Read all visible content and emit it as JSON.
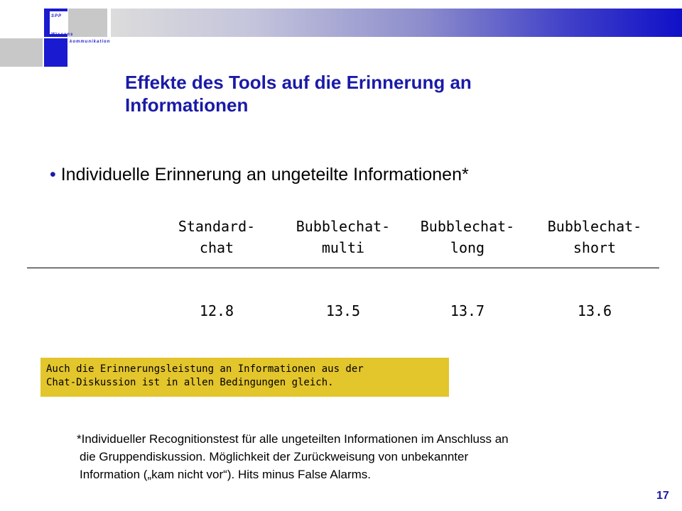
{
  "logo": {
    "line1": "SPP",
    "line2": "Wissens",
    "line3": "kommunikation"
  },
  "slide": {
    "title_line1": "Effekte des Tools auf die Erinnerung an",
    "title_line2": "Informationen",
    "bullet": "Individuelle Erinnerung an ungeteilte Informationen*",
    "columns": [
      {
        "head1": "Standard-",
        "head2": "chat",
        "value": "12.8"
      },
      {
        "head1": "Bubblechat-",
        "head2": "multi",
        "value": "13.5"
      },
      {
        "head1": "Bubblechat-",
        "head2": "long",
        "value": "13.7"
      },
      {
        "head1": "Bubblechat-",
        "head2": "short",
        "value": "13.6"
      }
    ],
    "note_line1": "Auch die Erinnerungsleistung an Informationen aus der",
    "note_line2": "Chat-Diskussion ist in allen Bedingungen gleich.",
    "footnote_line1": "*Individueller Recognitionstest für alle ungeteilten Informationen im Anschluss an",
    "footnote_line2": "die Gruppendiskussion. Möglichkeit der Zurückweisung von unbekannter",
    "footnote_line3": "Information („kam nicht vor“). Hits minus False Alarms.",
    "page_number": "17"
  },
  "colors": {
    "title": "#1a1aa8",
    "brand_blue": "#1a1ad0",
    "note_bg": "#e3c52c",
    "logo_gray": "#c8c8c8"
  }
}
